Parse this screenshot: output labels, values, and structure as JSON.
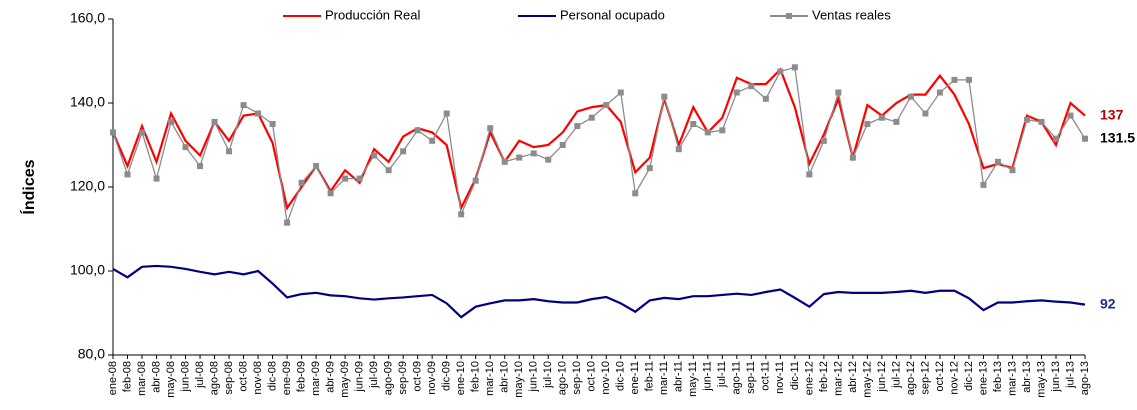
{
  "chart_data": {
    "type": "line",
    "y_label": "Índices",
    "categories": [
      "ene-08",
      "feb-08",
      "mar-08",
      "abr-08",
      "may-08",
      "jun-08",
      "jul-08",
      "ago-08",
      "sep-08",
      "oct-08",
      "nov-08",
      "dic-08",
      "ene-09",
      "feb-09",
      "mar-09",
      "abr-09",
      "may-09",
      "jun-09",
      "jul-09",
      "ago-09",
      "sep-09",
      "oct-09",
      "nov-09",
      "dic-09",
      "ene-10",
      "feb-10",
      "mar-10",
      "abr-10",
      "may-10",
      "jun-10",
      "jul-10",
      "ago-10",
      "sep-10",
      "oct-10",
      "nov-10",
      "dic-10",
      "ene-11",
      "feb-11",
      "mar-11",
      "abr-11",
      "may-11",
      "jun-11",
      "jul-11",
      "ago-11",
      "sep-11",
      "oct-11",
      "nov-11",
      "dic-11",
      "ene-12",
      "feb-12",
      "mar-12",
      "abr-12",
      "may-12",
      "jun-12",
      "jul-12",
      "ago-12",
      "sep-12",
      "oct-12",
      "nov-12",
      "dic-12",
      "ene-13",
      "feb-13",
      "mar-13",
      "abr-13",
      "may-13",
      "jun-13",
      "jul-13",
      "ago-13"
    ],
    "series": [
      {
        "name": "Producción Real",
        "color": "#ff0000",
        "label_color": "#c00000",
        "marker": false,
        "values": [
          133,
          125,
          134.5,
          126,
          137.5,
          131,
          127.5,
          135.5,
          131,
          137,
          137.5,
          130.5,
          115,
          120,
          125,
          119,
          124,
          121,
          129,
          126,
          132,
          134,
          133,
          130,
          115,
          122,
          133,
          126,
          131,
          129.5,
          130,
          133,
          138,
          139,
          139.5,
          135.5,
          123.5,
          127,
          141,
          130,
          139,
          133,
          136.5,
          146,
          144.5,
          144.5,
          148,
          139,
          125.5,
          132.5,
          141,
          127,
          139.5,
          137,
          140,
          142,
          142,
          146.5,
          142,
          135,
          124.5,
          125.5,
          124.5,
          137,
          135.5,
          130,
          140,
          137
        ]
      },
      {
        "name": "Personal ocupado",
        "color": "#000080",
        "label_color": "#1f2f8f",
        "marker": false,
        "values": [
          100.5,
          98.5,
          101,
          101.2,
          101,
          100.5,
          99.8,
          99.2,
          99.8,
          99.2,
          100,
          97,
          93.7,
          94.5,
          94.8,
          94.2,
          94,
          93.5,
          93.2,
          93.5,
          93.7,
          94,
          94.3,
          92.3,
          89,
          91.5,
          92.3,
          93,
          93,
          93.3,
          92.8,
          92.5,
          92.5,
          93.3,
          93.8,
          92.3,
          90.3,
          93,
          93.6,
          93.3,
          94,
          94,
          94.3,
          94.6,
          94.3,
          95,
          95.6,
          93.6,
          91.5,
          94.5,
          95,
          94.8,
          94.8,
          94.8,
          95,
          95.3,
          94.8,
          95.3,
          95.3,
          93.5,
          90.7,
          92.5,
          92.5,
          92.8,
          93,
          92.7,
          92.5,
          92
        ]
      },
      {
        "name": "Ventas reales",
        "color": "#8c8c8c",
        "label_color": "#000000",
        "marker": true,
        "values": [
          133,
          123,
          133,
          122,
          135.5,
          129.5,
          125,
          135.5,
          128.5,
          139.5,
          137.5,
          135,
          111.5,
          121,
          125,
          118.5,
          122,
          122,
          127.5,
          124,
          128.5,
          133.5,
          131,
          137.5,
          113.5,
          121.5,
          134,
          126,
          127,
          128,
          126.5,
          130,
          134.5,
          136.5,
          139.5,
          142.5,
          118.5,
          124.5,
          141.5,
          129,
          135,
          133,
          133.5,
          142.5,
          144,
          141,
          147.5,
          148.5,
          123,
          131,
          142.5,
          127,
          135,
          136.5,
          135.5,
          141.5,
          137.5,
          142.5,
          145.5,
          145.5,
          120.5,
          126,
          124,
          136,
          135.5,
          131.5,
          137,
          131.5
        ]
      }
    ],
    "ylim": [
      80,
      160
    ],
    "yticks": [
      {
        "value": 80,
        "label": "80,0"
      },
      {
        "value": 100,
        "label": "100,0"
      },
      {
        "value": 120,
        "label": "120,0"
      },
      {
        "value": 140,
        "label": "140,0"
      },
      {
        "value": 160,
        "label": "160,0"
      }
    ]
  }
}
